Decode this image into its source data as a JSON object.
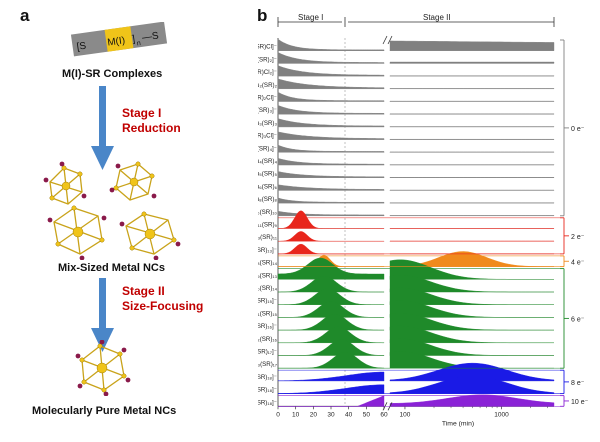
{
  "panel_a": {
    "letter": "a",
    "complex_chain": {
      "left": "[S",
      "dash1": "—",
      "metal": "M(I)",
      "right": "]",
      "sub": "n",
      "dash2": "—S"
    },
    "top_label": "M(I)-SR Complexes",
    "stage1": {
      "title": "Stage I",
      "subtitle": "Reduction"
    },
    "mid_label": "Mix-Sized Metal NCs",
    "stage2": {
      "title": "Stage II",
      "subtitle": "Size-Focusing"
    },
    "bottom_label": "Molecularly Pure Metal NCs"
  },
  "panel_b": {
    "letter": "b",
    "stage_labels": [
      "Stage I",
      "Stage II"
    ],
    "xlabel": "Time (min)",
    "xticks_linear": [
      "0",
      "10",
      "20",
      "30",
      "40",
      "50",
      "60"
    ],
    "xticks_log": [
      "100",
      "1000"
    ],
    "species": [
      "[Au(SR)Cl]⁻",
      "[Au(SR)₂]⁻",
      "[Au₂(SR)Cl₂]⁻",
      "Au₂(SR)₂",
      "[Au₂(SR)₂Cl]⁻",
      "[Au₂(SR)₃]⁻",
      "Au₃(SR)₃",
      "[Au₃(SR)₃Cl]⁻",
      "[Au₃(SR)₄]⁻",
      "Au₄(SR)₄",
      "Au₅(SR)₅",
      "Au₆(SR)₆",
      "Au₈(SR)₈",
      "Au₁₀(SR)₁₀",
      "Au₁₁(SR)₉",
      "Au₁₃(SR)₁₁",
      "[Au₁₅(SR)₁₃]⁻",
      "Au₁₈(SR)₁₄",
      "Au₁₉(SR)₁₃",
      "Au₂₀(SR)₁₄",
      "[Au₂₀(SR)₁₅]⁻",
      "Au₂₁(SR)₁₅",
      "[Au₂₁(SR)₁₆]⁻",
      "Au₂₂(SR)₁₆",
      "[Au₂₂(SR)₁₇]⁻",
      "Au₂₃(SR)₁₇",
      "[Au₂₃(SR)₁₈]⁻",
      "[Au₂₄(SR)₁₈]⁻",
      "[Au₂₅(SR)₁₈]⁻"
    ],
    "groups": [
      {
        "label": "0 e⁻",
        "color": "#808080"
      },
      {
        "label": "2 e⁻",
        "color": "#e8261c"
      },
      {
        "label": "4 e⁻",
        "color": "#f08a1c"
      },
      {
        "label": "6 e⁻",
        "color": "#1f8a2a"
      },
      {
        "label": "8 e⁻",
        "color": "#1a1ae6"
      },
      {
        "label": "10 e⁻",
        "color": "#8a22d6"
      }
    ]
  }
}
